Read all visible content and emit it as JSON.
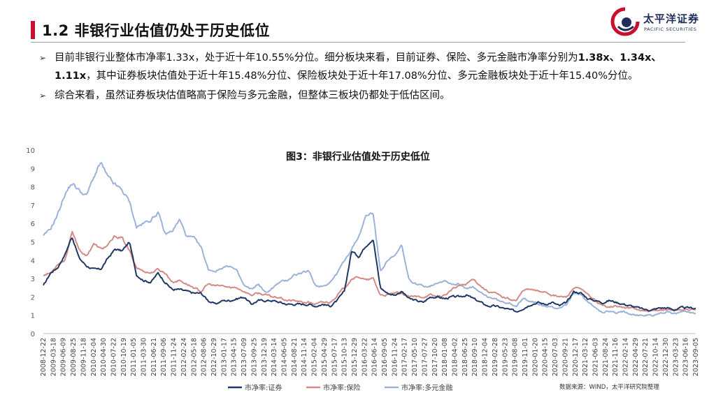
{
  "page": {
    "title": "1.2  非银行业估值仍处于历史低位",
    "logo_cn": "太平洋证券",
    "logo_en": "PACIFIC SECURITIES"
  },
  "bullets": [
    {
      "parts": [
        {
          "text": "目前非银行业整体市净率1.33x，处于近十年10.55%分位。细分板块来看，目前证券、保险、多元金融市净率分别为",
          "bold": false
        },
        {
          "text": "1.38x、1.34x、1.11x",
          "bold": true
        },
        {
          "text": "，其中证券板块估值处于近十年15.48%分位、保险板块处于近十年17.08%分位、多元金融板块处于近十年15.40%分位。",
          "bold": false
        }
      ]
    },
    {
      "parts": [
        {
          "text": "综合来看，虽然证券板块估值略高于保险与多元金融，但整体三板块仍都处于低估区间。",
          "bold": false
        }
      ]
    }
  ],
  "source_note": "数据来源：WIND，太平洋研究院整理",
  "colors": {
    "accent": "#c8102e",
    "sec": "#1f3864",
    "ins": "#d48b86",
    "div": "#9bb2d9"
  },
  "chart_data": {
    "type": "line",
    "title": "图3：非银行业估值处于历史低位",
    "ylim": [
      0,
      10
    ],
    "yticks": [
      0,
      1,
      2,
      3,
      4,
      5,
      6,
      7,
      8,
      9,
      10
    ],
    "grid": false,
    "legend_position": "bottom",
    "x_tick_labels": [
      "2008-12-22",
      "2009-03-18",
      "2009-06-09",
      "2009-08-25",
      "2009-11-18",
      "2010-02-04",
      "2010-04-30",
      "2010-07-22",
      "2010-10-19",
      "2011-01-05",
      "2011-03-30",
      "2011-06-21",
      "2011-09-06",
      "2011-11-24",
      "2012-02-24",
      "2012-05-18",
      "2012-08-06",
      "2012-10-29",
      "2013-01-17",
      "2013-04-15",
      "2013-07-09",
      "2013-09-25",
      "2013-12-19",
      "2014-03-14",
      "2014-06-05",
      "2014-08-21",
      "2014-11-14",
      "2015-02-04",
      "2015-04-29",
      "2015-07-17",
      "2015-10-13",
      "2015-12-29",
      "2016-03-22",
      "2016-06-14",
      "2016-09-05",
      "2016-11-24",
      "2017-02-17",
      "2017-05-10",
      "2017-07-27",
      "2017-10-20",
      "2018-01-08",
      "2018-04-02",
      "2018-06-25",
      "2018-09-10",
      "2018-12-04",
      "2019-02-28",
      "2019-05-23",
      "2019-08-08",
      "2019-11-01",
      "2020-01-20",
      "2020-04-15",
      "2020-07-03",
      "2020-09-21",
      "2020-12-17",
      "2021-03-12",
      "2021-06-03",
      "2021-08-24",
      "2021-11-16",
      "2022-02-14",
      "2022-04-29",
      "2022-07-21",
      "2022-10-14",
      "2022-12-30",
      "2023-03-23",
      "2023-06-16",
      "2023-09-05"
    ],
    "series": [
      {
        "name": "市净率:证券",
        "color": "#1f3864",
        "anchors": [
          [
            0,
            2.6
          ],
          [
            1,
            3.3
          ],
          [
            2,
            3.6
          ],
          [
            3,
            4.3
          ],
          [
            4,
            5.3
          ],
          [
            5,
            4.1
          ],
          [
            6,
            3.7
          ],
          [
            7,
            3.5
          ],
          [
            8,
            3.5
          ],
          [
            9,
            4.1
          ],
          [
            10,
            4.6
          ],
          [
            11,
            4.5
          ],
          [
            12,
            5.0
          ],
          [
            13,
            3.2
          ],
          [
            14,
            2.9
          ],
          [
            15,
            2.8
          ],
          [
            16,
            3.3
          ],
          [
            17,
            2.8
          ],
          [
            18,
            2.4
          ],
          [
            19,
            2.4
          ],
          [
            20,
            2.3
          ],
          [
            21,
            2.2
          ],
          [
            22,
            2.2
          ],
          [
            23,
            1.8
          ],
          [
            24,
            1.6
          ],
          [
            25,
            1.8
          ],
          [
            26,
            1.8
          ],
          [
            27,
            1.9
          ],
          [
            28,
            2.0
          ],
          [
            29,
            1.6
          ],
          [
            30,
            1.8
          ],
          [
            31,
            1.8
          ],
          [
            32,
            1.8
          ],
          [
            33,
            1.7
          ],
          [
            34,
            1.6
          ],
          [
            35,
            1.6
          ],
          [
            36,
            1.6
          ],
          [
            37,
            1.6
          ],
          [
            38,
            1.5
          ],
          [
            39,
            1.6
          ],
          [
            40,
            1.5
          ],
          [
            41,
            1.8
          ],
          [
            42,
            2.3
          ],
          [
            43,
            4.5
          ],
          [
            44,
            4.2
          ],
          [
            45,
            4.8
          ],
          [
            46,
            5.2
          ],
          [
            47,
            2.5
          ],
          [
            48,
            2.2
          ],
          [
            49,
            2.1
          ],
          [
            50,
            2.3
          ],
          [
            51,
            1.9
          ],
          [
            52,
            1.8
          ],
          [
            53,
            1.7
          ],
          [
            54,
            2.0
          ],
          [
            55,
            2.0
          ],
          [
            56,
            1.9
          ],
          [
            57,
            2.0
          ],
          [
            58,
            2.0
          ],
          [
            59,
            2.1
          ],
          [
            60,
            1.9
          ],
          [
            61,
            1.7
          ],
          [
            62,
            1.5
          ],
          [
            63,
            1.5
          ],
          [
            64,
            1.4
          ],
          [
            65,
            1.3
          ],
          [
            66,
            1.2
          ],
          [
            67,
            1.4
          ],
          [
            68,
            1.6
          ],
          [
            69,
            1.7
          ],
          [
            70,
            1.6
          ],
          [
            71,
            1.7
          ],
          [
            72,
            1.5
          ],
          [
            73,
            1.7
          ],
          [
            74,
            2.3
          ],
          [
            75,
            2.2
          ],
          [
            76,
            1.9
          ],
          [
            77,
            1.8
          ],
          [
            78,
            1.7
          ],
          [
            79,
            1.8
          ],
          [
            80,
            1.7
          ],
          [
            81,
            1.6
          ],
          [
            82,
            1.5
          ],
          [
            83,
            1.4
          ],
          [
            84,
            1.3
          ],
          [
            85,
            1.3
          ],
          [
            86,
            1.4
          ],
          [
            87,
            1.4
          ],
          [
            88,
            1.3
          ],
          [
            89,
            1.4
          ],
          [
            90,
            1.4
          ],
          [
            91,
            1.38
          ]
        ]
      },
      {
        "name": "市净率:保险",
        "color": "#d48b86",
        "anchors": [
          [
            0,
            3.2
          ],
          [
            1,
            3.3
          ],
          [
            2,
            3.8
          ],
          [
            3,
            4.0
          ],
          [
            4,
            5.5
          ],
          [
            5,
            4.6
          ],
          [
            6,
            4.2
          ],
          [
            7,
            4.9
          ],
          [
            8,
            4.6
          ],
          [
            9,
            4.8
          ],
          [
            10,
            5.3
          ],
          [
            11,
            5.2
          ],
          [
            12,
            4.5
          ],
          [
            13,
            3.6
          ],
          [
            14,
            3.4
          ],
          [
            15,
            3.3
          ],
          [
            16,
            3.5
          ],
          [
            17,
            3.3
          ],
          [
            18,
            2.8
          ],
          [
            19,
            2.9
          ],
          [
            20,
            2.7
          ],
          [
            21,
            2.5
          ],
          [
            22,
            2.3
          ],
          [
            23,
            2.7
          ],
          [
            24,
            2.6
          ],
          [
            25,
            2.6
          ],
          [
            26,
            2.5
          ],
          [
            27,
            2.5
          ],
          [
            28,
            2.3
          ],
          [
            29,
            2.1
          ],
          [
            30,
            2.2
          ],
          [
            31,
            2.1
          ],
          [
            32,
            2.0
          ],
          [
            33,
            2.0
          ],
          [
            34,
            1.8
          ],
          [
            35,
            1.8
          ],
          [
            36,
            1.7
          ],
          [
            37,
            1.7
          ],
          [
            38,
            1.6
          ],
          [
            39,
            1.7
          ],
          [
            40,
            1.7
          ],
          [
            41,
            2.1
          ],
          [
            42,
            2.5
          ],
          [
            43,
            3.0
          ],
          [
            44,
            3.1
          ],
          [
            45,
            2.9
          ],
          [
            46,
            3.0
          ],
          [
            47,
            2.1
          ],
          [
            48,
            2.1
          ],
          [
            49,
            2.2
          ],
          [
            50,
            2.2
          ],
          [
            51,
            2.0
          ],
          [
            52,
            2.0
          ],
          [
            53,
            2.0
          ],
          [
            54,
            2.1
          ],
          [
            55,
            2.0
          ],
          [
            56,
            2.1
          ],
          [
            57,
            2.4
          ],
          [
            58,
            2.6
          ],
          [
            59,
            2.7
          ],
          [
            60,
            3.0
          ],
          [
            61,
            2.6
          ],
          [
            62,
            2.3
          ],
          [
            63,
            2.2
          ],
          [
            64,
            2.0
          ],
          [
            65,
            1.9
          ],
          [
            66,
            1.8
          ],
          [
            67,
            2.4
          ],
          [
            68,
            2.4
          ],
          [
            69,
            2.3
          ],
          [
            70,
            2.3
          ],
          [
            71,
            2.1
          ],
          [
            72,
            2.0
          ],
          [
            73,
            2.0
          ],
          [
            74,
            2.5
          ],
          [
            75,
            2.4
          ],
          [
            76,
            2.1
          ],
          [
            77,
            1.8
          ],
          [
            78,
            1.5
          ],
          [
            79,
            1.5
          ],
          [
            80,
            1.5
          ],
          [
            81,
            1.4
          ],
          [
            82,
            1.4
          ],
          [
            83,
            1.3
          ],
          [
            84,
            1.2
          ],
          [
            85,
            1.2
          ],
          [
            86,
            1.3
          ],
          [
            87,
            1.3
          ],
          [
            88,
            1.3
          ],
          [
            89,
            1.3
          ],
          [
            90,
            1.3
          ],
          [
            91,
            1.34
          ]
        ]
      },
      {
        "name": "市净率:多元金融",
        "color": "#9bb2d9",
        "anchors": [
          [
            0,
            5.3
          ],
          [
            1,
            5.7
          ],
          [
            2,
            6.5
          ],
          [
            3,
            7.6
          ],
          [
            4,
            8.2
          ],
          [
            5,
            7.8
          ],
          [
            6,
            7.5
          ],
          [
            7,
            8.5
          ],
          [
            8,
            9.3
          ],
          [
            9,
            8.5
          ],
          [
            10,
            8.1
          ],
          [
            11,
            7.8
          ],
          [
            12,
            7.2
          ],
          [
            13,
            5.8
          ],
          [
            14,
            6.0
          ],
          [
            15,
            6.2
          ],
          [
            16,
            6.6
          ],
          [
            17,
            5.4
          ],
          [
            18,
            5.6
          ],
          [
            19,
            6.2
          ],
          [
            20,
            5.3
          ],
          [
            21,
            5.2
          ],
          [
            22,
            4.7
          ],
          [
            23,
            3.5
          ],
          [
            24,
            3.4
          ],
          [
            25,
            3.6
          ],
          [
            26,
            3.7
          ],
          [
            27,
            3.4
          ],
          [
            28,
            2.6
          ],
          [
            29,
            2.4
          ],
          [
            30,
            2.7
          ],
          [
            31,
            2.2
          ],
          [
            32,
            2.5
          ],
          [
            33,
            2.8
          ],
          [
            34,
            2.9
          ],
          [
            35,
            3.2
          ],
          [
            36,
            3.3
          ],
          [
            37,
            3.4
          ],
          [
            38,
            2.6
          ],
          [
            39,
            2.6
          ],
          [
            40,
            2.8
          ],
          [
            41,
            3.3
          ],
          [
            42,
            4.0
          ],
          [
            43,
            4.6
          ],
          [
            44,
            5.3
          ],
          [
            45,
            6.4
          ],
          [
            46,
            6.6
          ],
          [
            47,
            3.4
          ],
          [
            48,
            4.0
          ],
          [
            49,
            4.2
          ],
          [
            50,
            4.8
          ],
          [
            51,
            2.9
          ],
          [
            52,
            2.7
          ],
          [
            53,
            2.6
          ],
          [
            54,
            2.6
          ],
          [
            55,
            2.8
          ],
          [
            56,
            2.9
          ],
          [
            57,
            2.7
          ],
          [
            58,
            2.7
          ],
          [
            59,
            2.5
          ],
          [
            60,
            2.5
          ],
          [
            61,
            2.2
          ],
          [
            62,
            2.0
          ],
          [
            63,
            1.9
          ],
          [
            64,
            1.7
          ],
          [
            65,
            1.7
          ],
          [
            66,
            1.5
          ],
          [
            67,
            1.9
          ],
          [
            68,
            1.8
          ],
          [
            69,
            1.6
          ],
          [
            70,
            1.5
          ],
          [
            71,
            1.4
          ],
          [
            72,
            1.4
          ],
          [
            73,
            1.6
          ],
          [
            74,
            2.2
          ],
          [
            75,
            2.1
          ],
          [
            76,
            1.7
          ],
          [
            77,
            1.4
          ],
          [
            78,
            1.2
          ],
          [
            79,
            1.2
          ],
          [
            80,
            1.1
          ],
          [
            81,
            1.2
          ],
          [
            82,
            1.1
          ],
          [
            83,
            1.0
          ],
          [
            84,
            1.0
          ],
          [
            85,
            1.0
          ],
          [
            86,
            1.1
          ],
          [
            87,
            1.2
          ],
          [
            88,
            1.1
          ],
          [
            89,
            1.2
          ],
          [
            90,
            1.2
          ],
          [
            91,
            1.11
          ]
        ]
      }
    ]
  }
}
